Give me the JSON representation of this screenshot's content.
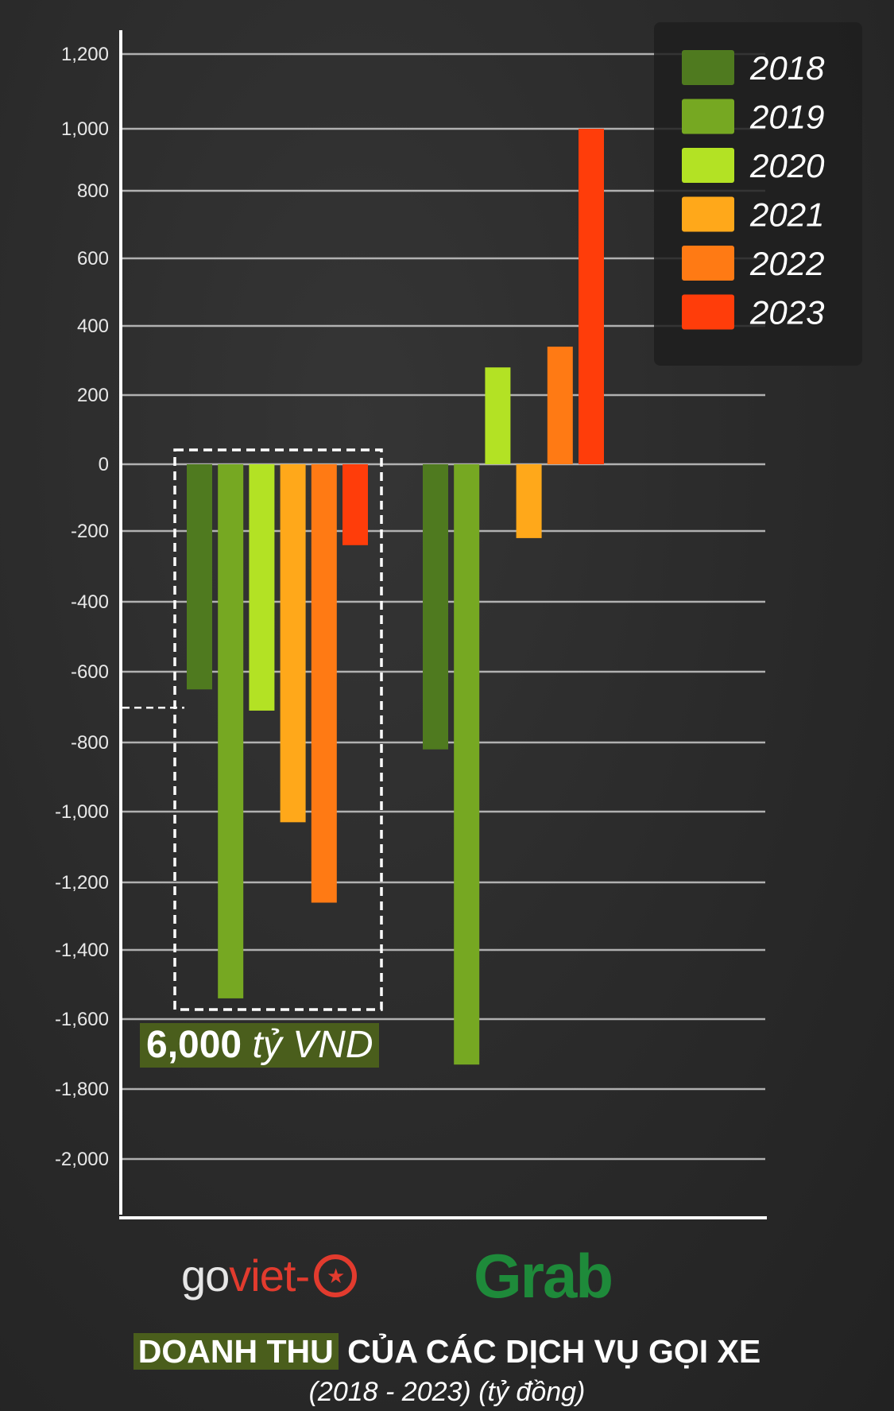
{
  "chart_data": {
    "type": "bar",
    "groups": [
      "goviet",
      "Grab"
    ],
    "series": [
      {
        "name": "2018",
        "color": "#4f7a1f",
        "values": [
          -650,
          -820
        ]
      },
      {
        "name": "2019",
        "color": "#76a822",
        "values": [
          -1540,
          -1730
        ]
      },
      {
        "name": "2020",
        "color": "#b3e224",
        "values": [
          -710,
          280
        ]
      },
      {
        "name": "2021",
        "color": "#ffa81a",
        "values": [
          -1030,
          -220
        ]
      },
      {
        "name": "2022",
        "color": "#ff7a14",
        "values": [
          -1260,
          340
        ]
      },
      {
        "name": "2023",
        "color": "#ff3d0a",
        "values": [
          -240,
          1000
        ]
      }
    ],
    "y_ticks": [
      1200,
      1000,
      800,
      600,
      400,
      200,
      0,
      -200,
      -400,
      -600,
      -800,
      -1000,
      -1200,
      -1400,
      -1600,
      -1800,
      -2000
    ],
    "y_tick_labels": [
      "1,200",
      "1,000",
      "800",
      "600",
      "400",
      "200",
      "0",
      "-200",
      "-400",
      "-600",
      "-800",
      "-1,000",
      "-1,200",
      "-1,400",
      "-1,600",
      "-1,800",
      "-2,000"
    ],
    "ylim": [
      -2000,
      1200
    ],
    "grid": true,
    "legend_position": "top-right",
    "highlight_reference_value": -650
  },
  "annotation": {
    "value": "6,000",
    "unit": "tỷ VND"
  },
  "logos": {
    "goviet_go": "go",
    "goviet_viet": "viet-",
    "grab": "Grab"
  },
  "title": {
    "highlight": "DOANH THU",
    "rest": " CỦA CÁC DỊCH VỤ GỌI XE"
  },
  "subtitle": "(2018 - 2023) (tỷ đồng)"
}
